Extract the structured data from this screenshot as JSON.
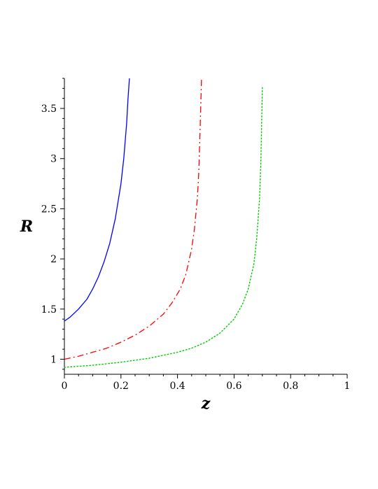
{
  "chart_data": {
    "type": "line",
    "title": "",
    "xlabel": "z",
    "ylabel": "R",
    "xlim": [
      0,
      1
    ],
    "ylim": [
      0.85,
      3.8
    ],
    "grid": false,
    "x_ticks": [
      0,
      0.2,
      0.4,
      0.6,
      0.8,
      1
    ],
    "x_tick_labels": [
      "0",
      "0.2",
      "0.4",
      "0.6",
      "0.8",
      "1"
    ],
    "y_ticks": [
      1,
      1.5,
      2,
      2.5,
      3,
      3.5
    ],
    "y_tick_labels": [
      "1",
      "1.5",
      "2",
      "2.5",
      "3",
      "3.5"
    ],
    "series": [
      {
        "color": "#0000ff",
        "style": "solid",
        "x": [
          0,
          0.02,
          0.05,
          0.08,
          0.1,
          0.12,
          0.14,
          0.16,
          0.18,
          0.2,
          0.21,
          0.22,
          0.225,
          0.23
        ],
        "y": [
          1.38,
          1.42,
          1.5,
          1.6,
          1.7,
          1.82,
          1.97,
          2.15,
          2.4,
          2.75,
          3.0,
          3.35,
          3.6,
          3.8
        ]
      },
      {
        "color": "#ff0000",
        "style": "dashdot",
        "x": [
          0,
          0.05,
          0.1,
          0.15,
          0.2,
          0.25,
          0.3,
          0.35,
          0.38,
          0.41,
          0.43,
          0.45,
          0.46,
          0.47,
          0.475,
          0.48,
          0.485
        ],
        "y": [
          1.0,
          1.03,
          1.07,
          1.11,
          1.17,
          1.24,
          1.33,
          1.45,
          1.56,
          1.7,
          1.85,
          2.1,
          2.3,
          2.6,
          2.85,
          3.3,
          3.8
        ]
      },
      {
        "color": "#00cc00",
        "style": "dotted",
        "x": [
          0,
          0.1,
          0.2,
          0.3,
          0.4,
          0.45,
          0.5,
          0.55,
          0.6,
          0.63,
          0.65,
          0.67,
          0.68,
          0.69,
          0.695,
          0.7
        ],
        "y": [
          0.92,
          0.94,
          0.97,
          1.01,
          1.07,
          1.11,
          1.17,
          1.26,
          1.4,
          1.55,
          1.7,
          1.95,
          2.2,
          2.6,
          3.0,
          3.72
        ]
      }
    ]
  }
}
